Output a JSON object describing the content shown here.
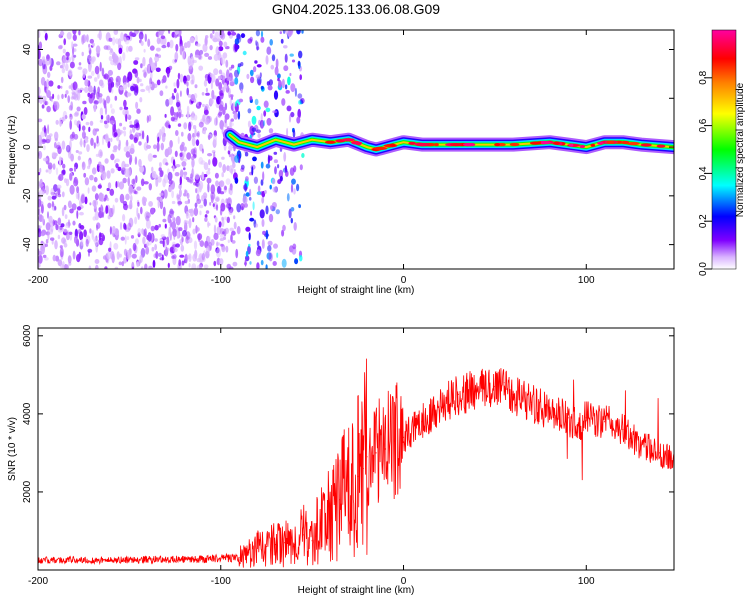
{
  "figure": {
    "title": "GN04.2025.133.06.08.G09"
  },
  "chart_data": [
    {
      "type": "heatmap",
      "title": "GN04.2025.133.06.08.G09",
      "xlabel": "Height of straight line (km)",
      "ylabel": "Frequency (Hz)",
      "xlim": [
        -200,
        148
      ],
      "ylim": [
        -50,
        48
      ],
      "x_ticks": [
        "-200",
        "-100",
        "0",
        "100"
      ],
      "y_ticks": [
        "-40",
        "-20",
        "0",
        "20",
        "40"
      ],
      "colorbar": {
        "label": "Normalized spectral amplitude",
        "range": [
          0,
          1
        ],
        "ticks": [
          "0.0",
          "0.2",
          "0.4",
          "0.6",
          "0.8"
        ],
        "colormap": [
          "#ffffff",
          "#7f00ff",
          "#0000ff",
          "#00ffff",
          "#00ff00",
          "#ffff00",
          "#ff7f00",
          "#ff0000",
          "#ff00a0"
        ]
      },
      "regions": [
        {
          "x_range": [
            -200,
            -92
          ],
          "description_level": "noise",
          "amplitude_range": [
            0.0,
            0.15
          ]
        },
        {
          "x_range": [
            -92,
            -55
          ],
          "description_level": "transition",
          "amplitude_range": [
            0.05,
            0.4
          ]
        },
        {
          "x_range": [
            -55,
            148
          ],
          "description_level": "signal",
          "amplitude_range": [
            0.3,
            1.0
          ]
        }
      ],
      "signal_trace": {
        "x": [
          -95,
          -90,
          -80,
          -70,
          -60,
          -50,
          -40,
          -30,
          -20,
          -15,
          -10,
          -5,
          0,
          10,
          20,
          40,
          60,
          80,
          90,
          100,
          110,
          120,
          130,
          148
        ],
        "y": [
          5,
          2,
          0,
          3,
          1,
          3,
          2,
          3,
          0,
          -1,
          0,
          1,
          2,
          1,
          1,
          1,
          1,
          2,
          1,
          0,
          2,
          2,
          1,
          0
        ]
      }
    },
    {
      "type": "line",
      "title": "",
      "xlabel": "Height of straight line (km)",
      "ylabel": "SNR (10 * v/v)",
      "xlim": [
        -200,
        148
      ],
      "ylim": [
        0,
        6200
      ],
      "x_ticks": [
        "-200",
        "-100",
        "0",
        "100"
      ],
      "y_ticks": [
        "2000",
        "4000",
        "6000"
      ],
      "color": "#ff0000",
      "series": [
        {
          "x": [
            -200,
            -190,
            -180,
            -170,
            -160,
            -150,
            -140,
            -130,
            -120,
            -110,
            -100,
            -90,
            -85,
            -80,
            -75,
            -70,
            -65,
            -60,
            -55,
            -50,
            -45,
            -40,
            -35,
            -30,
            -25,
            -22,
            -20,
            -15,
            -10,
            -5,
            0,
            10,
            20,
            30,
            40,
            50,
            55,
            60,
            70,
            80,
            90,
            95,
            100,
            110,
            120,
            130,
            140,
            148
          ],
          "y": [
            250,
            250,
            260,
            250,
            250,
            260,
            270,
            270,
            270,
            280,
            300,
            320,
            400,
            550,
            600,
            650,
            700,
            650,
            900,
            750,
            1200,
            1400,
            1800,
            2100,
            2400,
            2600,
            2900,
            3000,
            3100,
            3300,
            3400,
            3800,
            4200,
            4500,
            4600,
            4700,
            4800,
            4500,
            4300,
            4000,
            3900,
            3700,
            3900,
            3800,
            3600,
            3200,
            3000,
            2800
          ]
        }
      ]
    }
  ]
}
